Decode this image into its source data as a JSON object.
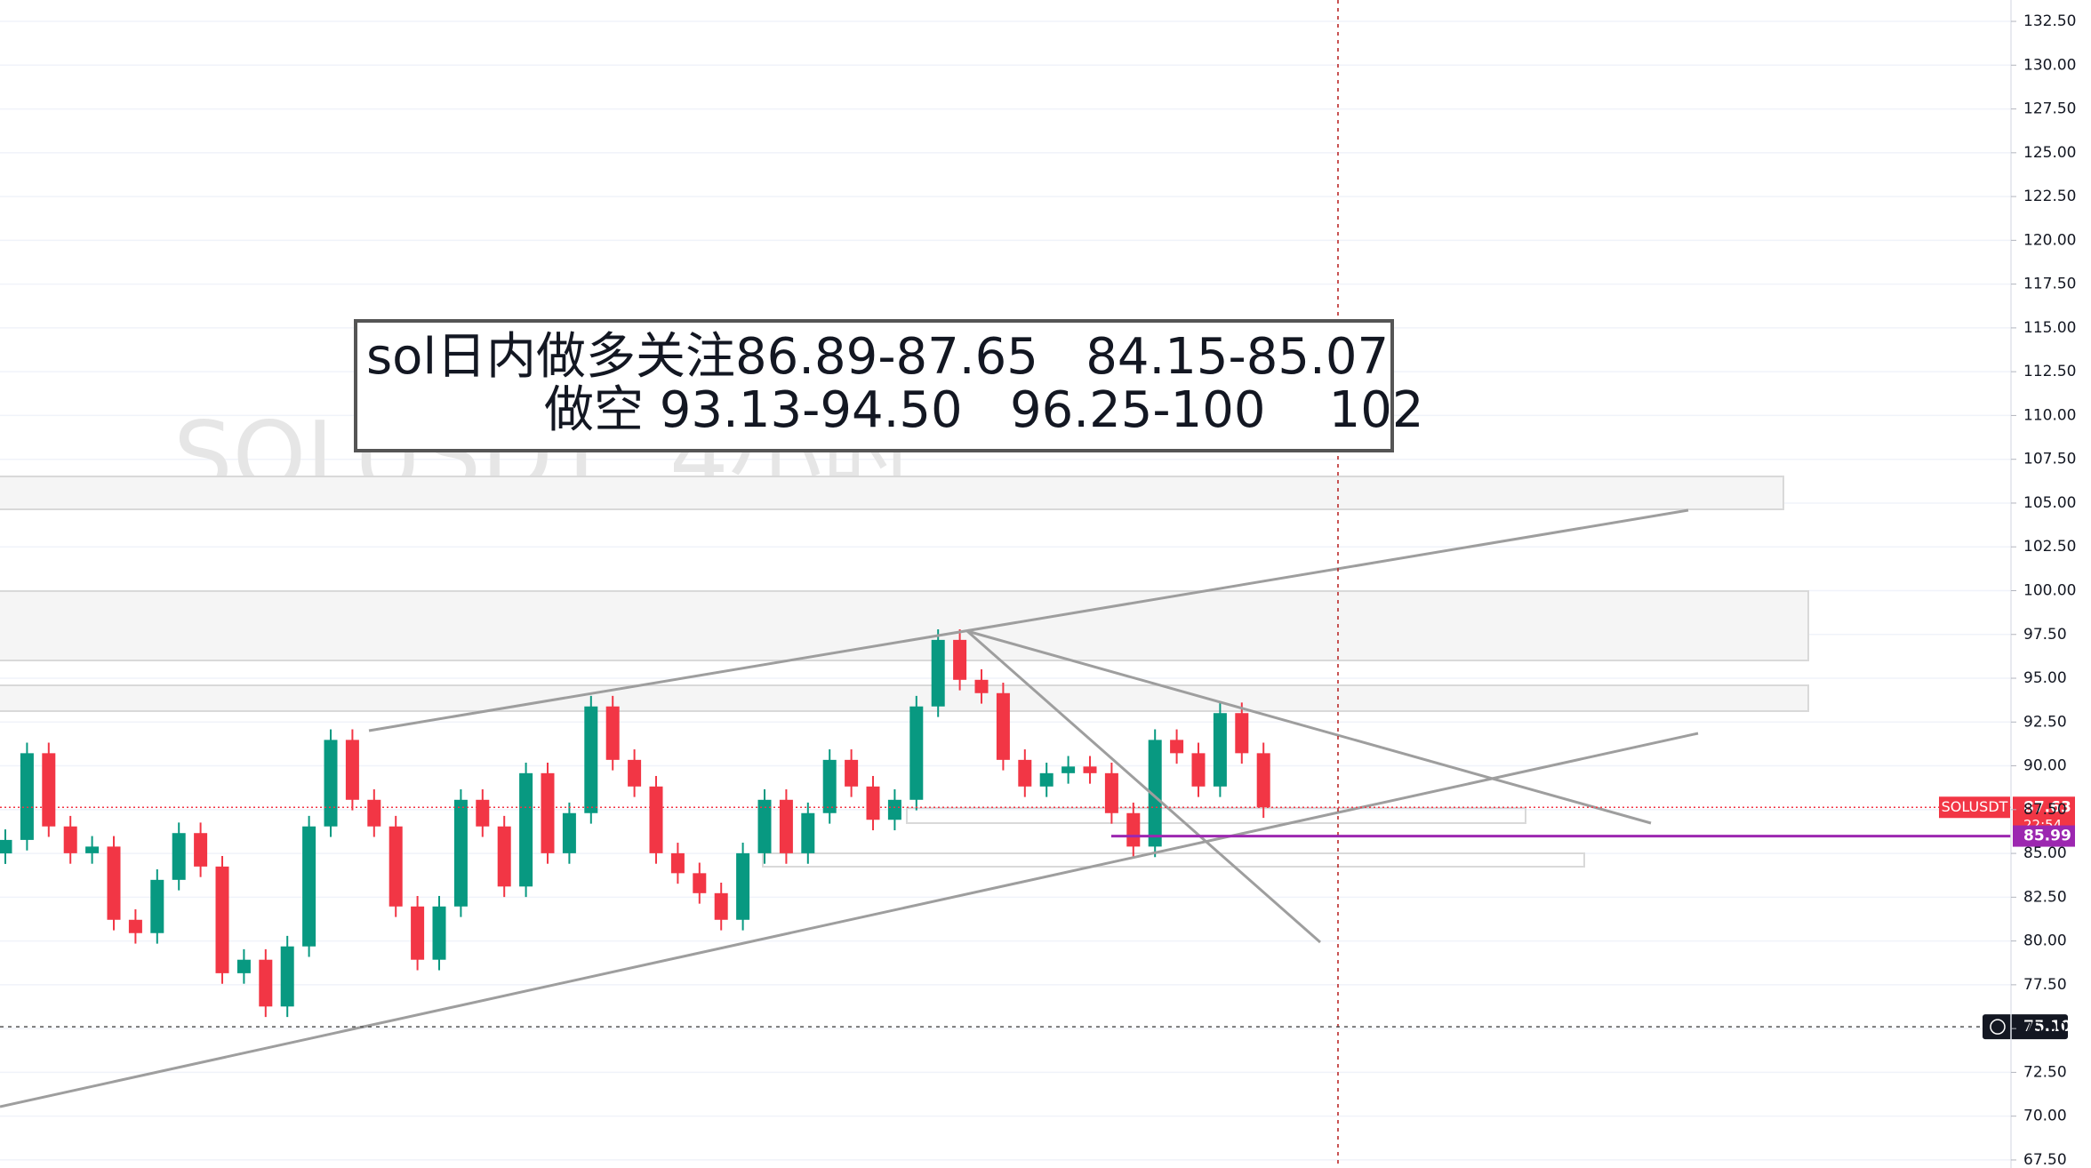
{
  "chart_data": {
    "type": "candlestick",
    "watermark": "SOLUSDT, 4小时",
    "annotation": [
      "sol日内做多关注86.89-87.65   84.15-85.07",
      "做空 93.13-94.50   96.25-100    102"
    ],
    "symbol": "SOLUSDT",
    "countdown": "22:54",
    "up_color": "#089981",
    "down_color": "#f23645",
    "ylim": [
      67.04,
      133.72
    ],
    "yticks": [
      {
        "value": 67.5,
        "label": "67.50"
      },
      {
        "value": 70,
        "label": "70.00"
      },
      {
        "value": 72.5,
        "label": "72.50"
      },
      {
        "value": 75,
        "label": "75.00"
      },
      {
        "value": 77.5,
        "label": "77.50"
      },
      {
        "value": 80,
        "label": "80.00"
      },
      {
        "value": 82.5,
        "label": "82.50"
      },
      {
        "value": 85,
        "label": "85.00"
      },
      {
        "value": 87.5,
        "label": "87.50"
      },
      {
        "value": 90,
        "label": "90.00"
      },
      {
        "value": 92.5,
        "label": "92.50"
      },
      {
        "value": 95,
        "label": "95.00"
      },
      {
        "value": 97.5,
        "label": "97.50"
      },
      {
        "value": 100,
        "label": "100.00"
      },
      {
        "value": 102.5,
        "label": "102.50"
      },
      {
        "value": 105,
        "label": "105.00"
      },
      {
        "value": 107.5,
        "label": "107.50"
      },
      {
        "value": 110,
        "label": "110.00"
      },
      {
        "value": 112.5,
        "label": "112.50"
      },
      {
        "value": 115,
        "label": "115.00"
      },
      {
        "value": 117.5,
        "label": "117.50"
      },
      {
        "value": 120,
        "label": "120.00"
      },
      {
        "value": 122.5,
        "label": "122.50"
      },
      {
        "value": 125,
        "label": "125.00"
      },
      {
        "value": 127.5,
        "label": "127.50"
      },
      {
        "value": 130,
        "label": "130.00"
      },
      {
        "value": 132.5,
        "label": "132.50"
      }
    ],
    "grid": true,
    "last_price": {
      "value": 87.63,
      "color": "#f23645"
    },
    "level": {
      "value": 85.99,
      "color": "#9c27b0"
    },
    "crosshair": {
      "value": 75.1,
      "label": "75.10"
    },
    "candles": [
      [
        85.0,
        86.37,
        84.4,
        85.77
      ],
      [
        85.77,
        91.32,
        85.17,
        90.72
      ],
      [
        90.72,
        91.32,
        85.94,
        86.54
      ],
      [
        86.54,
        87.14,
        84.41,
        85.01
      ],
      [
        85.01,
        85.99,
        84.41,
        85.39
      ],
      [
        85.39,
        85.99,
        80.61,
        81.21
      ],
      [
        81.21,
        81.81,
        79.85,
        80.45
      ],
      [
        80.45,
        84.09,
        79.85,
        83.49
      ],
      [
        83.49,
        86.76,
        82.89,
        86.16
      ],
      [
        86.16,
        86.76,
        83.65,
        84.25
      ],
      [
        84.25,
        84.85,
        77.56,
        78.16
      ],
      [
        78.16,
        79.53,
        77.56,
        78.93
      ],
      [
        78.93,
        79.53,
        75.66,
        76.26
      ],
      [
        76.26,
        80.29,
        75.66,
        79.69
      ],
      [
        79.69,
        87.14,
        79.09,
        86.54
      ],
      [
        86.54,
        92.08,
        85.94,
        91.48
      ],
      [
        91.48,
        92.08,
        87.46,
        88.06
      ],
      [
        88.06,
        88.66,
        85.94,
        86.54
      ],
      [
        86.54,
        87.14,
        81.37,
        81.97
      ],
      [
        81.97,
        82.57,
        78.33,
        78.93
      ],
      [
        78.93,
        82.57,
        78.33,
        81.97
      ],
      [
        81.97,
        88.66,
        81.37,
        88.06
      ],
      [
        88.06,
        88.66,
        85.94,
        86.54
      ],
      [
        86.54,
        87.14,
        82.51,
        83.11
      ],
      [
        83.11,
        90.18,
        82.51,
        89.58
      ],
      [
        89.58,
        90.18,
        84.41,
        85.01
      ],
      [
        85.01,
        87.9,
        84.41,
        87.3
      ],
      [
        87.3,
        93.99,
        86.7,
        93.39
      ],
      [
        93.39,
        93.99,
        89.74,
        90.34
      ],
      [
        90.34,
        90.94,
        88.22,
        88.82
      ],
      [
        88.82,
        89.42,
        84.41,
        85.01
      ],
      [
        85.01,
        85.61,
        83.27,
        83.87
      ],
      [
        83.87,
        84.47,
        82.13,
        82.73
      ],
      [
        82.73,
        83.33,
        80.61,
        81.21
      ],
      [
        81.21,
        85.61,
        80.61,
        85.01
      ],
      [
        85.01,
        88.66,
        84.41,
        88.06
      ],
      [
        88.06,
        88.66,
        84.41,
        85.01
      ],
      [
        85.01,
        87.9,
        84.41,
        87.3
      ],
      [
        87.3,
        90.94,
        86.7,
        90.34
      ],
      [
        90.34,
        90.94,
        88.22,
        88.82
      ],
      [
        88.82,
        89.42,
        86.32,
        86.92
      ],
      [
        86.92,
        88.66,
        86.32,
        88.06
      ],
      [
        88.06,
        93.99,
        87.46,
        93.39
      ],
      [
        93.39,
        97.79,
        92.79,
        97.19
      ],
      [
        97.19,
        97.79,
        94.31,
        94.91
      ],
      [
        94.91,
        95.51,
        93.55,
        94.15
      ],
      [
        94.15,
        94.75,
        89.74,
        90.34
      ],
      [
        90.34,
        90.94,
        88.22,
        88.82
      ],
      [
        88.82,
        90.18,
        88.22,
        89.58
      ],
      [
        89.58,
        90.56,
        88.98,
        89.96
      ],
      [
        89.96,
        90.56,
        88.98,
        89.58
      ],
      [
        89.58,
        90.18,
        86.7,
        87.3
      ],
      [
        87.3,
        87.9,
        84.79,
        85.39
      ],
      [
        85.39,
        92.08,
        84.79,
        91.48
      ],
      [
        91.48,
        92.08,
        90.12,
        90.72
      ],
      [
        90.72,
        91.32,
        88.22,
        88.82
      ],
      [
        88.82,
        93.61,
        88.22,
        93.01
      ],
      [
        93.01,
        93.61,
        90.12,
        90.72
      ],
      [
        90.72,
        91.32,
        87.03,
        87.63
      ]
    ]
  }
}
